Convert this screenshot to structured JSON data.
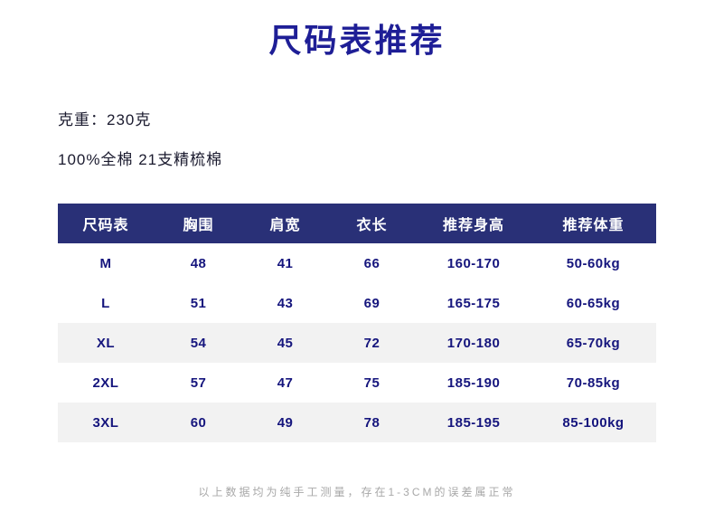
{
  "page": {
    "title": "尺码表推荐",
    "weight_line": "克重：230克",
    "fabric_line": "100%全棉 21支精梳棉",
    "footnote": "以上数据均为纯手工测量，存在1-3CM的误差属正常"
  },
  "colors": {
    "title_text": "#1e1e96",
    "table_header_bg": "#293077",
    "table_header_text": "#ffffff",
    "table_body_text": "#15157d",
    "stripe_bg": "#f2f2f2",
    "footnote_text": "#a8a8a8"
  },
  "chart_data": {
    "type": "table",
    "title": "尺码表推荐",
    "columns": [
      "尺码表",
      "胸围",
      "肩宽",
      "衣长",
      "推荐身高",
      "推荐体重"
    ],
    "rows": [
      [
        "M",
        "48",
        "41",
        "66",
        "160-170",
        "50-60kg"
      ],
      [
        "L",
        "51",
        "43",
        "69",
        "165-175",
        "60-65kg"
      ],
      [
        "XL",
        "54",
        "45",
        "72",
        "170-180",
        "65-70kg"
      ],
      [
        "2XL",
        "57",
        "47",
        "75",
        "185-190",
        "70-85kg"
      ],
      [
        "3XL",
        "60",
        "49",
        "78",
        "185-195",
        "85-100kg"
      ]
    ]
  }
}
